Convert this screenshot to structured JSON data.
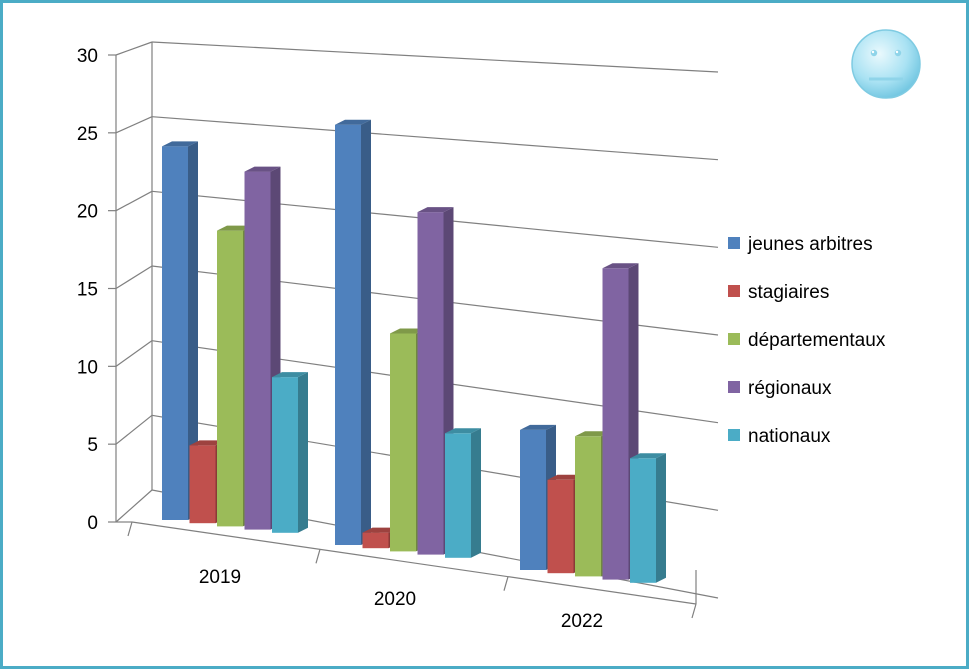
{
  "chart_data": {
    "type": "bar",
    "categories": [
      "2019",
      "2020",
      "2022"
    ],
    "series": [
      {
        "name": "jeunes arbitres",
        "values": [
          24,
          27,
          9
        ],
        "color": "#4f81bd"
      },
      {
        "name": "stagiaires",
        "values": [
          5,
          1,
          6
        ],
        "color": "#c0504d"
      },
      {
        "name": "départementaux",
        "values": [
          19,
          14,
          9
        ],
        "color": "#9bbb59"
      },
      {
        "name": "régionaux",
        "values": [
          23,
          22,
          20
        ],
        "color": "#8064a2"
      },
      {
        "name": "nationaux",
        "values": [
          10,
          8,
          8
        ],
        "color": "#4bacc6"
      }
    ],
    "y_ticks": [
      "0",
      "5",
      "10",
      "15",
      "20",
      "25",
      "30"
    ],
    "ylim": [
      0,
      30
    ],
    "grid": true,
    "legend_position": "right",
    "chart_style": "3d-perspective"
  },
  "decoration": {
    "emoji": "neutral-face-icon"
  },
  "colors": {
    "frame": "#4bacc6",
    "grid": "#808080"
  }
}
